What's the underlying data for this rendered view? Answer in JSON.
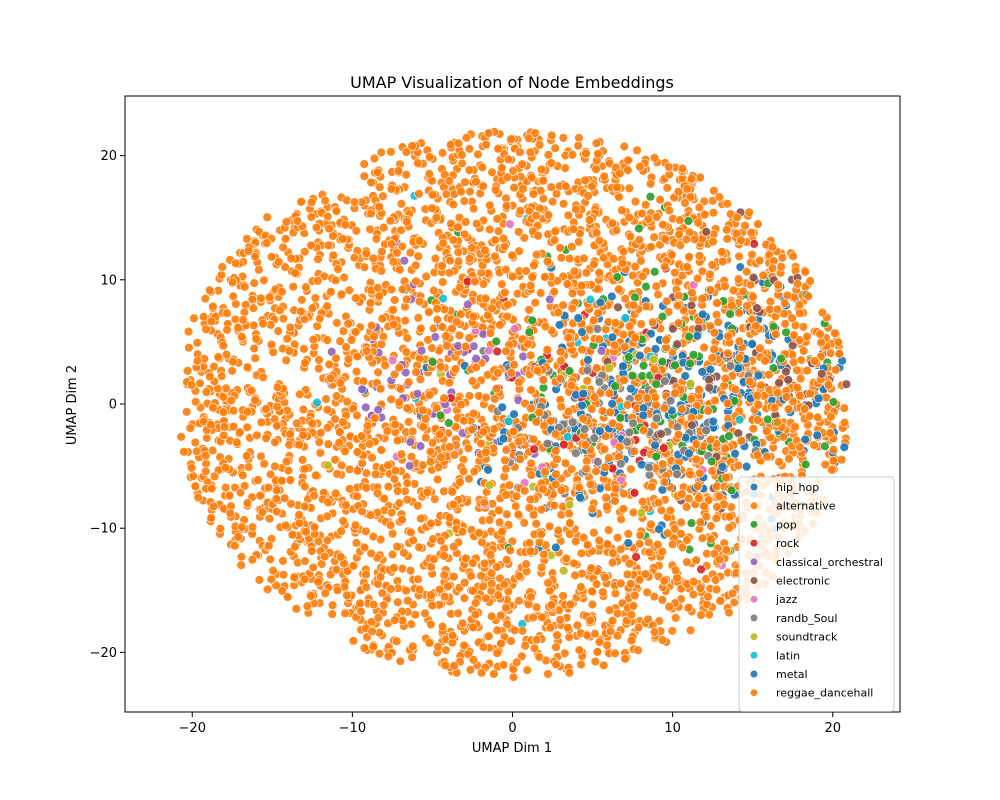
{
  "chart_data": {
    "type": "scatter",
    "title": "UMAP Visualization of Node Embeddings",
    "xlabel": "UMAP Dim 1",
    "ylabel": "UMAP Dim 2",
    "xlim": [
      -24.2,
      24.2
    ],
    "ylim": [
      -24.8,
      24.8
    ],
    "xticks": [
      -20,
      -10,
      0,
      10,
      20
    ],
    "yticks": [
      -20,
      -10,
      0,
      10,
      20
    ],
    "grid": false,
    "legend_position": "lower-right",
    "point_count_approx": 4000,
    "series": [
      {
        "name": "hip_hop",
        "color": "#1f77b4"
      },
      {
        "name": "alternative",
        "color": "#ff7f0e"
      },
      {
        "name": "pop",
        "color": "#2ca02c"
      },
      {
        "name": "rock",
        "color": "#d62728"
      },
      {
        "name": "classical_orchestral",
        "color": "#9467bd"
      },
      {
        "name": "electronic",
        "color": "#8c564b"
      },
      {
        "name": "jazz",
        "color": "#e377c2"
      },
      {
        "name": "randb_Soul",
        "color": "#7f7f7f"
      },
      {
        "name": "soundtrack",
        "color": "#bcbd22"
      },
      {
        "name": "latin",
        "color": "#17becf"
      },
      {
        "name": "metal",
        "color": "#1f77b4"
      },
      {
        "name": "reggae_dancehall",
        "color": "#ff7f0e"
      }
    ]
  }
}
